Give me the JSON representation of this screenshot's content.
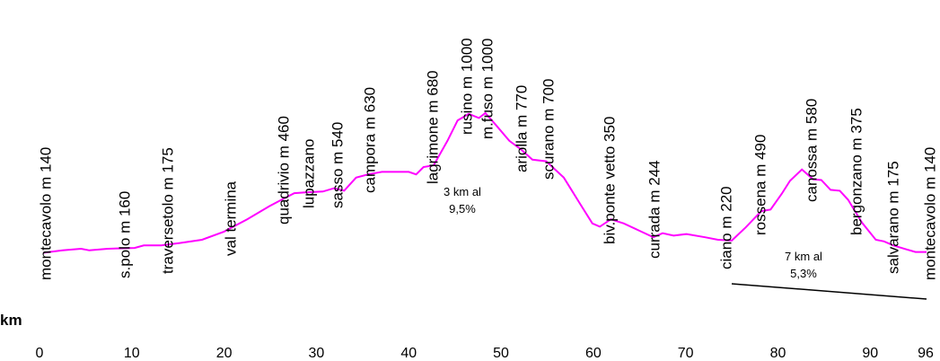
{
  "chart_data": {
    "type": "line",
    "x_axis_label": "km",
    "x": [
      0.4,
      2.5,
      4.5,
      5.4,
      7.4,
      10.3,
      11.3,
      13.2,
      15.2,
      17.6,
      20.0,
      22.5,
      24.9,
      26.4,
      27.6,
      28.8,
      30.7,
      31.9,
      33.0,
      34.3,
      35.6,
      37.1,
      40.0,
      40.8,
      41.6,
      42.7,
      44.2,
      45.3,
      46.5,
      47.6,
      48.3,
      49.4,
      50.9,
      52.1,
      53.4,
      54.9,
      56.8,
      58.5,
      59.9,
      60.7,
      61.9,
      63.3,
      64.8,
      66.5,
      67.5,
      68.7,
      70.1,
      72.1,
      73.5,
      75.0,
      76.5,
      78.2,
      79.2,
      80.4,
      81.3,
      82.6,
      83.8,
      84.7,
      85.7,
      86.7,
      87.6,
      89.1,
      90.6,
      91.5,
      92.5,
      94.0,
      94.9,
      96.1
    ],
    "series": [
      {
        "color": "#ff00ff",
        "values": [
          140,
          155,
          165,
          155,
          165,
          170,
          185,
          185,
          200,
          220,
          270,
          345,
          425,
          470,
          505,
          510,
          515,
          535,
          520,
          600,
          620,
          635,
          635,
          620,
          665,
          675,
          825,
          950,
          990,
          965,
          995,
          925,
          825,
          775,
          710,
          700,
          600,
          445,
          320,
          300,
          345,
          320,
          280,
          235,
          260,
          245,
          255,
          235,
          220,
          215,
          295,
          395,
          405,
          500,
          580,
          650,
          590,
          585,
          525,
          520,
          465,
          325,
          220,
          210,
          185,
          160,
          145,
          145
        ]
      }
    ],
    "xlim": [
      0,
      96
    ],
    "ylim": [
      0,
      1000
    ],
    "xticks": [
      0,
      10,
      20,
      30,
      40,
      50,
      60,
      70,
      80,
      90,
      96
    ],
    "annotations": [
      "montecavolo m 140",
      "s.polo m 160",
      "traversetolo m 175",
      "val termina",
      "quadrivio m 460",
      "lupazzano",
      "sasso m 540",
      "campora m 630",
      "lagrimone m 680",
      "rusino m 1000",
      "m.fuso m 1000",
      "ariolla m 770",
      "scurano m 700",
      "biv.ponte vetto 350",
      "currada m 244",
      "ciano m 220",
      "rossena m 490",
      "canossa m 580",
      "bergonzano m 375",
      "salvarano m 175",
      "montecavolo m 140"
    ],
    "notes": [
      [
        "3 km al",
        "9,5%"
      ],
      [
        "7 km al",
        "5,3%"
      ]
    ]
  }
}
